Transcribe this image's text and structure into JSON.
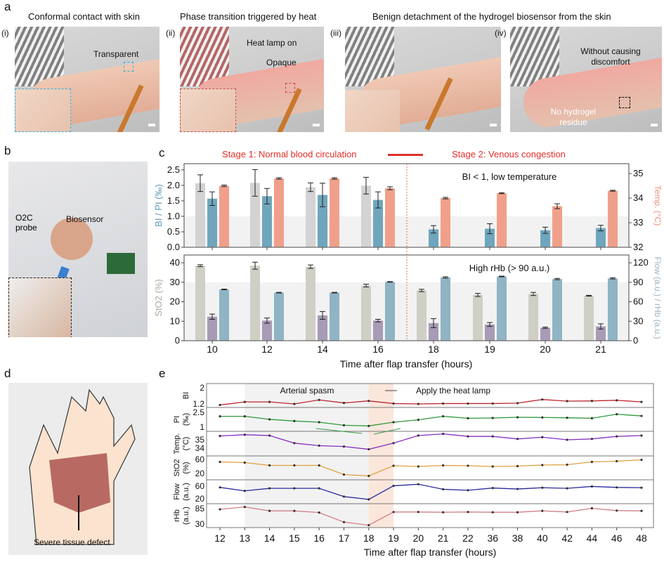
{
  "panel_a": {
    "label": "a",
    "titles": [
      "Conformal contact with skin",
      "Phase transition triggered by heat",
      "Benign detachment of the hydrogel biosensor from the skin"
    ],
    "photos": [
      {
        "index": "(i)",
        "annotations": [
          "Transparent"
        ]
      },
      {
        "index": "(ii)",
        "annotations": [
          "Heat lamp on",
          "Opaque"
        ]
      },
      {
        "index": "(iii)",
        "annotations": []
      },
      {
        "index": "(iv)",
        "annotations": [
          "Without causing discomfort",
          "No hydrogel residue"
        ]
      }
    ]
  },
  "panel_b": {
    "label": "b",
    "annotations": [
      "O2C probe",
      "Biosensor"
    ]
  },
  "panel_d": {
    "label": "d",
    "annotation": "Severe tissue defect"
  },
  "panel_c": {
    "label": "c",
    "stage1": "Stage 1: Normal blood circulation",
    "stage2": "Stage 2: Venous congestion"
  },
  "panel_e": {
    "label": "e",
    "annot_spasm": "Arterial spasm",
    "annot_heat": "Apply the heat lamp"
  },
  "chart_data": [
    {
      "id": "c-top",
      "type": "bar",
      "categories": [
        "10",
        "12",
        "14",
        "16",
        "18",
        "19",
        "20",
        "21"
      ],
      "annotation": "BI < 1, low temperature",
      "ylabel_left": "BI / PI (‰)",
      "ylim_left": [
        0,
        2.7
      ],
      "yticks_left": [
        0.0,
        0.5,
        1.0,
        1.5,
        2.0,
        2.5
      ],
      "ylabel_right": "Temp. (°C)",
      "ylim_right": [
        32,
        35.4
      ],
      "yticks_right": [
        32,
        33,
        34,
        35
      ],
      "threshold_band_below": 1.0,
      "series": [
        {
          "axis": "left",
          "color": "#d3d3d3",
          "values": [
            2.07,
            2.08,
            1.94,
            1.99,
            null,
            null,
            null,
            null
          ],
          "errors": [
            0.27,
            0.43,
            0.14,
            0.27,
            null,
            null,
            null,
            null
          ]
        },
        {
          "axis": "left",
          "color": "#6fa6bd",
          "values": [
            1.57,
            1.65,
            1.69,
            1.53,
            0.58,
            0.6,
            0.55,
            0.62
          ],
          "errors": [
            0.22,
            0.25,
            0.38,
            0.26,
            0.12,
            0.16,
            0.1,
            0.09
          ]
        },
        {
          "axis": "right",
          "color": "#f0a08a",
          "values": [
            34.5,
            34.8,
            34.8,
            34.4,
            34.0,
            34.2,
            33.67,
            34.3
          ],
          "errors": [
            0.03,
            0.03,
            0.03,
            0.06,
            0.03,
            0.02,
            0.1,
            0.02
          ]
        }
      ]
    },
    {
      "id": "c-bottom",
      "type": "bar",
      "categories": [
        "10",
        "12",
        "14",
        "16",
        "18",
        "19",
        "20",
        "21"
      ],
      "annotation": "High rHb (> 90 a.u.)",
      "xlabel": "Time after flap transfer (hours)",
      "ylabel_left": "StO2 (%)",
      "ylim_left": [
        0,
        44
      ],
      "yticks_left": [
        0,
        10,
        20,
        30,
        40
      ],
      "ylabel_right": "Flow (a.u.) / rHb (a.u.)",
      "ylim_right": [
        0,
        132
      ],
      "yticks_right": [
        0,
        30,
        60,
        90,
        120
      ],
      "threshold_band_below_right": 90,
      "series": [
        {
          "axis": "left",
          "color": "#cfcfc6",
          "values": [
            38.5,
            38.5,
            38,
            28.3,
            25.8,
            23.5,
            24,
            23.1
          ],
          "errors": [
            0.5,
            1.8,
            0.9,
            0.7,
            0.6,
            0.8,
            0.8,
            0.2
          ]
        },
        {
          "axis": "right",
          "color": "#a89bb5",
          "values": [
            37,
            31,
            39,
            31,
            27,
            25,
            20,
            22
          ],
          "errors": [
            4,
            4,
            6,
            2,
            7,
            3,
            1,
            4
          ]
        },
        {
          "axis": "right",
          "color": "#8fb4c4",
          "values": [
            79,
            74,
            74,
            90.6,
            97.5,
            99,
            95,
            96
          ],
          "errors": [
            0.5,
            0.5,
            0.5,
            0.5,
            1,
            0.5,
            1,
            1
          ]
        }
      ]
    },
    {
      "id": "e",
      "type": "line",
      "xlabel": "Time after flap transfer (hours)",
      "categories": [
        "12",
        "13",
        "14",
        "15",
        "16",
        "17",
        "18",
        "19",
        "20",
        "21",
        "22",
        "36",
        "38",
        "40",
        "42",
        "44",
        "46",
        "48"
      ],
      "shaded_gray": [
        "13",
        "18"
      ],
      "shaded_orange": [
        "18",
        "19"
      ],
      "series": [
        {
          "ylabel": "BI",
          "color": "#c0282e",
          "yticks": [
            1.2,
            2.0
          ],
          "values": [
            1.15,
            1.3,
            1.3,
            1.2,
            1.4,
            1.25,
            1.35,
            1.22,
            1.2,
            1.22,
            1.22,
            1.22,
            1.24,
            1.42,
            1.34,
            1.35,
            1.38,
            1.3
          ]
        },
        {
          "ylabel": "PI (‰)",
          "color": "#2e9a3a",
          "yticks": [
            1,
            2.5
          ],
          "values": [
            2.1,
            2.1,
            1.79,
            1.62,
            1.5,
            1.19,
            1.12,
            1.5,
            1.74,
            2.1,
            1.9,
            1.93,
            2.0,
            1.98,
            1.95,
            1.9,
            2.31,
            2.14
          ]
        },
        {
          "ylabel": "Temp. (°C)",
          "color": "#8a2fc0",
          "yticks": [
            34,
            35
          ],
          "values": [
            35.45,
            35.6,
            35.5,
            34.6,
            34.3,
            34.2,
            33.87,
            34.6,
            35.5,
            35.7,
            35.4,
            35.4,
            35.1,
            35.3,
            35.0,
            35.1,
            35.4,
            35.5
          ]
        },
        {
          "ylabel": "StO2 (%)",
          "color": "#e0a040",
          "yticks": [
            20,
            60
          ],
          "values": [
            53,
            51,
            43,
            43,
            43,
            17,
            13,
            42,
            40,
            43,
            42,
            40,
            41,
            44,
            45,
            53,
            55,
            59
          ]
        },
        {
          "ylabel": "Flow (a.u.)",
          "color": "#2a2aa0",
          "yticks": [
            20,
            60
          ],
          "values": [
            56,
            45,
            53,
            53,
            53,
            27,
            18,
            61,
            66,
            50,
            47,
            54,
            51,
            55,
            53,
            59,
            56,
            55
          ]
        },
        {
          "ylabel": "rHb (a.u.)",
          "color": "#d27f86",
          "yticks": [
            30,
            85
          ],
          "values": [
            82.5,
            91,
            77,
            77,
            71,
            37,
            26,
            73,
            73,
            72,
            73,
            72,
            72,
            77,
            73,
            86,
            78,
            77
          ]
        }
      ]
    }
  ]
}
